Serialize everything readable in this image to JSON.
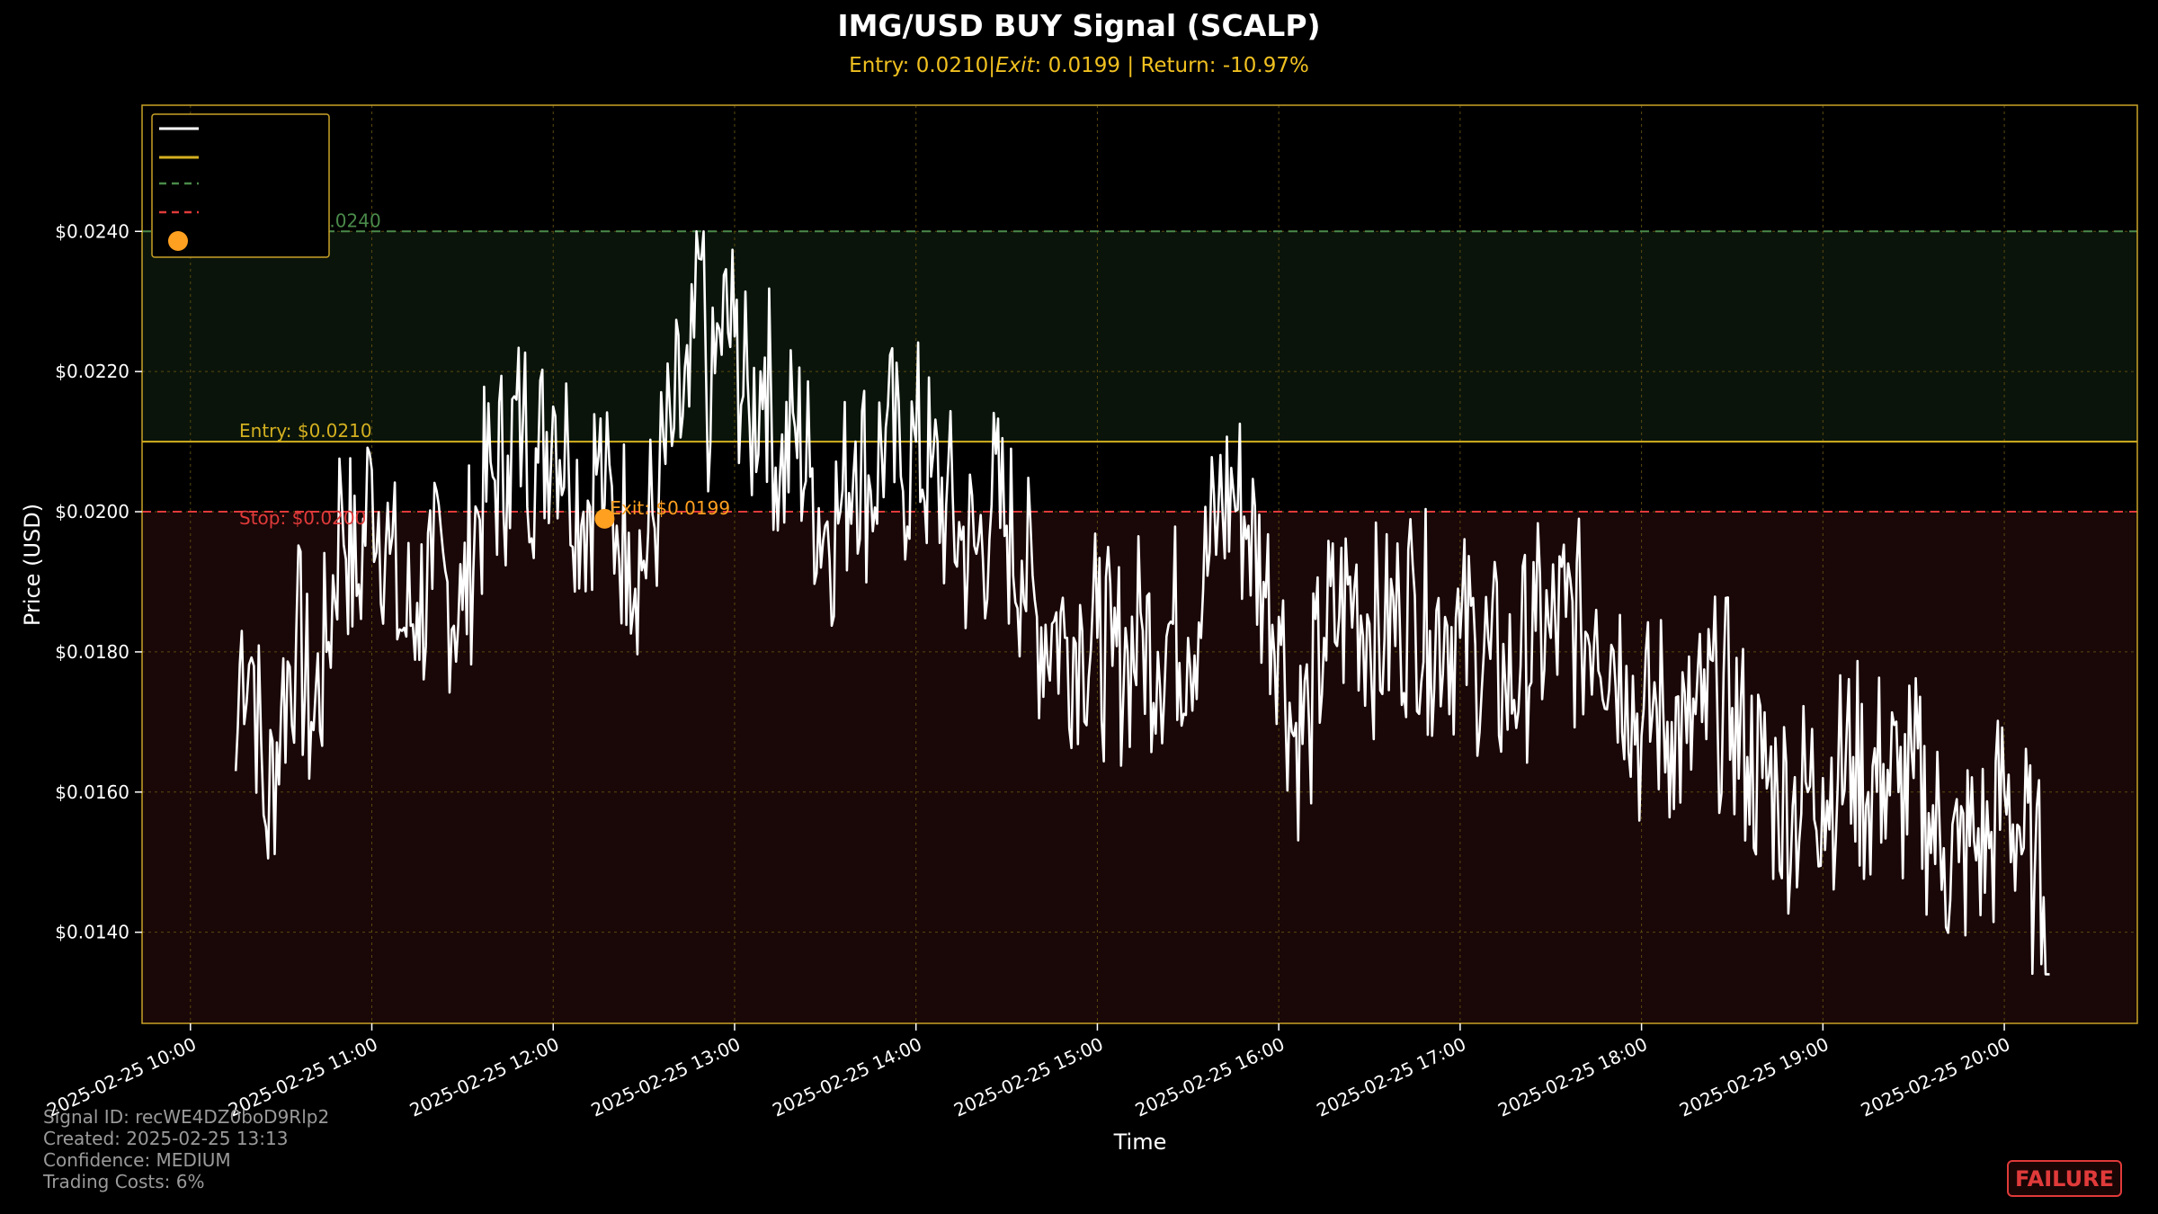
{
  "chart_data": {
    "type": "line",
    "title": "IMG/USD BUY Signal (SCALP)",
    "subtitle_parts": [
      "Entry: 0.0210|",
      "Exit",
      ": 0.0199 | Return: -10.97%"
    ],
    "xlabel": "Time",
    "ylabel": "Price (USD)",
    "x_range": [
      "2025-02-25 09:44",
      "2025-02-25 20:44"
    ],
    "ylim": [
      0.0127,
      0.0258
    ],
    "grid": true,
    "legend_position": "upper-left",
    "x_ticks": [
      {
        "x": "2025-02-25 10:00",
        "label": "2025-02-25 10:00"
      },
      {
        "x": "2025-02-25 11:00",
        "label": "2025-02-25 11:00"
      },
      {
        "x": "2025-02-25 12:00",
        "label": "2025-02-25 12:00"
      },
      {
        "x": "2025-02-25 13:00",
        "label": "2025-02-25 13:00"
      },
      {
        "x": "2025-02-25 14:00",
        "label": "2025-02-25 14:00"
      },
      {
        "x": "2025-02-25 15:00",
        "label": "2025-02-25 15:00"
      },
      {
        "x": "2025-02-25 16:00",
        "label": "2025-02-25 16:00"
      },
      {
        "x": "2025-02-25 17:00",
        "label": "2025-02-25 17:00"
      },
      {
        "x": "2025-02-25 18:00",
        "label": "2025-02-25 18:00"
      },
      {
        "x": "2025-02-25 19:00",
        "label": "2025-02-25 19:00"
      },
      {
        "x": "2025-02-25 20:00",
        "label": "2025-02-25 20:00"
      }
    ],
    "y_ticks": [
      {
        "y": 0.014,
        "label": "$0.0140"
      },
      {
        "y": 0.016,
        "label": "$0.0160"
      },
      {
        "y": 0.018,
        "label": "$0.0180"
      },
      {
        "y": 0.02,
        "label": "$0.0200"
      },
      {
        "y": 0.022,
        "label": "$0.0220"
      },
      {
        "y": 0.024,
        "label": "$0.0240"
      }
    ],
    "levels": {
      "entry": {
        "value": 0.021,
        "label": "Entry: $0.0210",
        "color": "#d4b020"
      },
      "target": {
        "value": 0.024,
        "label": "Target: $0.0240",
        "color": "#4a8a4a"
      },
      "stop": {
        "value": 0.02,
        "label": "Stop: $0.0200",
        "color": "#e03a3a"
      }
    },
    "zones": {
      "profit_color": "#0a140a",
      "loss_color": "#1a0707"
    },
    "exit_marker": {
      "x": "2025-02-25 12:17",
      "y": 0.0199,
      "label": "Exit: $0.0199",
      "color": "#ffa020"
    },
    "price_series": {
      "color": "#ffffff",
      "start": "2025-02-25 10:15",
      "end": "2025-02-25 20:15",
      "anchors": [
        [
          "10:15",
          0.0163
        ],
        [
          "10:17",
          0.0183
        ],
        [
          "10:21",
          0.0178
        ],
        [
          "10:25",
          0.0155
        ],
        [
          "10:30",
          0.0172
        ],
        [
          "10:35",
          0.0183
        ],
        [
          "10:40",
          0.017
        ],
        [
          "10:45",
          0.018
        ],
        [
          "10:50",
          0.0202
        ],
        [
          "10:55",
          0.0188
        ],
        [
          "11:00",
          0.0206
        ],
        [
          "11:06",
          0.0194
        ],
        [
          "11:10",
          0.0183
        ],
        [
          "11:15",
          0.0187
        ],
        [
          "11:20",
          0.0189
        ],
        [
          "11:25",
          0.019
        ],
        [
          "11:30",
          0.0186
        ],
        [
          "11:35",
          0.02
        ],
        [
          "11:40",
          0.0205
        ],
        [
          "11:45",
          0.0208
        ],
        [
          "11:50",
          0.0213
        ],
        [
          "11:55",
          0.0207
        ],
        [
          "12:00",
          0.0215
        ],
        [
          "12:05",
          0.0208
        ],
        [
          "12:10",
          0.02
        ],
        [
          "12:15",
          0.0208
        ],
        [
          "12:17",
          0.0201
        ],
        [
          "12:21",
          0.0198
        ],
        [
          "12:25",
          0.0197
        ],
        [
          "12:30",
          0.0193
        ],
        [
          "12:35",
          0.0203
        ],
        [
          "12:40",
          0.0212
        ],
        [
          "12:45",
          0.0215
        ],
        [
          "12:49",
          0.0236
        ],
        [
          "12:52",
          0.021
        ],
        [
          "12:55",
          0.0226
        ],
        [
          "13:00",
          0.0225
        ],
        [
          "13:05",
          0.0212
        ],
        [
          "13:10",
          0.0222
        ],
        [
          "13:15",
          0.0205
        ],
        [
          "13:20",
          0.0212
        ],
        [
          "13:25",
          0.0205
        ],
        [
          "13:30",
          0.0198
        ],
        [
          "13:35",
          0.02
        ],
        [
          "13:40",
          0.021
        ],
        [
          "13:45",
          0.0203
        ],
        [
          "13:50",
          0.0212
        ],
        [
          "13:55",
          0.0205
        ],
        [
          "14:00",
          0.021
        ],
        [
          "14:05",
          0.0205
        ],
        [
          "14:10",
          0.0201
        ],
        [
          "14:15",
          0.0196
        ],
        [
          "14:20",
          0.0194
        ],
        [
          "14:25",
          0.0201
        ],
        [
          "14:30",
          0.0198
        ],
        [
          "14:35",
          0.0193
        ],
        [
          "14:40",
          0.0185
        ],
        [
          "14:45",
          0.0184
        ],
        [
          "14:50",
          0.0182
        ],
        [
          "14:55",
          0.0183
        ],
        [
          "15:00",
          0.0182
        ],
        [
          "15:05",
          0.0178
        ],
        [
          "15:10",
          0.018
        ],
        [
          "15:15",
          0.0183
        ],
        [
          "15:20",
          0.018
        ],
        [
          "15:25",
          0.0184
        ],
        [
          "15:30",
          0.0182
        ],
        [
          "15:35",
          0.0189
        ],
        [
          "15:40",
          0.02
        ],
        [
          "15:45",
          0.0203
        ],
        [
          "15:50",
          0.0198
        ],
        [
          "15:55",
          0.019
        ],
        [
          "16:00",
          0.0185
        ],
        [
          "16:05",
          0.0168
        ],
        [
          "16:10",
          0.017
        ],
        [
          "16:15",
          0.0182
        ],
        [
          "16:20",
          0.0185
        ],
        [
          "16:25",
          0.0189
        ],
        [
          "16:30",
          0.0184
        ],
        [
          "16:35",
          0.0182
        ],
        [
          "16:40",
          0.0185
        ],
        [
          "16:45",
          0.0188
        ],
        [
          "16:50",
          0.0183
        ],
        [
          "16:55",
          0.0185
        ],
        [
          "17:00",
          0.0182
        ],
        [
          "17:05",
          0.0181
        ],
        [
          "17:10",
          0.0179
        ],
        [
          "17:15",
          0.0175
        ],
        [
          "17:20",
          0.0178
        ],
        [
          "17:25",
          0.0183
        ],
        [
          "17:30",
          0.0182
        ],
        [
          "17:35",
          0.0185
        ],
        [
          "17:40",
          0.0183
        ],
        [
          "17:45",
          0.0186
        ],
        [
          "17:50",
          0.0181
        ],
        [
          "17:55",
          0.0178
        ],
        [
          "18:00",
          0.0168
        ],
        [
          "18:05",
          0.0172
        ],
        [
          "18:10",
          0.017
        ],
        [
          "18:15",
          0.0167
        ],
        [
          "18:20",
          0.017
        ],
        [
          "18:25",
          0.0173
        ],
        [
          "18:30",
          0.0172
        ],
        [
          "18:35",
          0.0165
        ],
        [
          "18:40",
          0.0162
        ],
        [
          "18:45",
          0.016
        ],
        [
          "18:50",
          0.0158
        ],
        [
          "18:55",
          0.016
        ],
        [
          "19:00",
          0.0162
        ],
        [
          "19:05",
          0.0162
        ],
        [
          "19:10",
          0.0165
        ],
        [
          "19:15",
          0.016
        ],
        [
          "19:20",
          0.0164
        ],
        [
          "19:25",
          0.016
        ],
        [
          "19:30",
          0.0162
        ],
        [
          "19:35",
          0.0157
        ],
        [
          "19:40",
          0.0152
        ],
        [
          "19:45",
          0.015
        ],
        [
          "19:50",
          0.0153
        ],
        [
          "19:55",
          0.0152
        ],
        [
          "20:00",
          0.016
        ],
        [
          "20:05",
          0.0155
        ],
        [
          "20:10",
          0.0148
        ],
        [
          "20:13",
          0.0145
        ],
        [
          "20:15",
          0.0133
        ]
      ]
    }
  },
  "info": {
    "signal_id": "Signal ID: recWE4DZ0boD9Rlp2",
    "created": "Created: 2025-02-25 13:13",
    "confidence": "Confidence: MEDIUM",
    "trading_costs": "Trading Costs: 6%"
  },
  "badge": {
    "text": "FAILURE",
    "color": "#e03a3a"
  }
}
